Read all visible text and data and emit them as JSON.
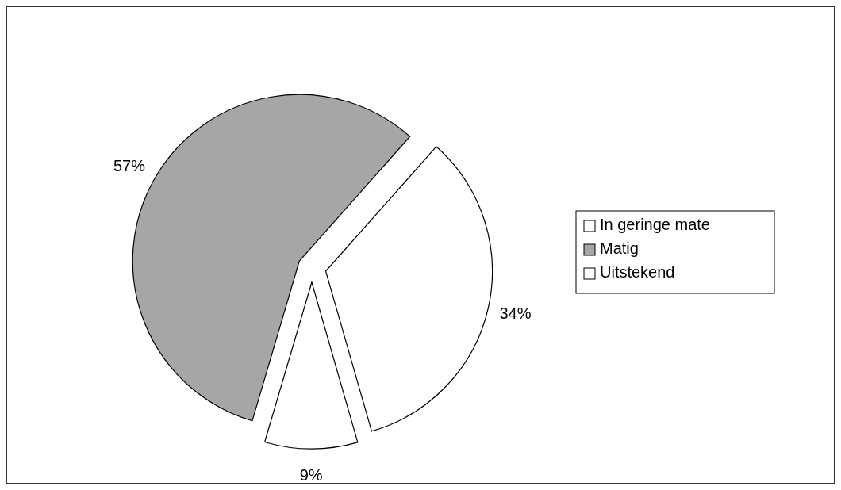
{
  "chart_data": {
    "type": "pie",
    "categories": [
      "In geringe mate",
      "Matig",
      "Uitstekend"
    ],
    "values": [
      9,
      57,
      34
    ],
    "colors": [
      "#ffffff",
      "#a6a6a6",
      "#ffffff"
    ],
    "value_labels": [
      "9%",
      "57%",
      "34%"
    ],
    "legend": "right"
  }
}
